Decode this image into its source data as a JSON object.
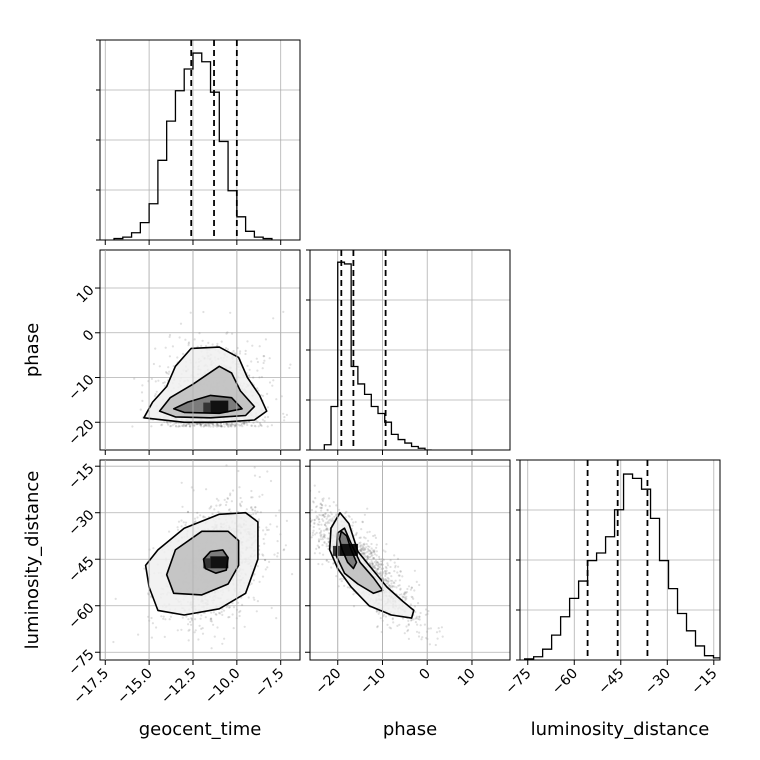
{
  "chart_data": {
    "type": "corner",
    "parameters": [
      "geocent_time",
      "phase",
      "luminosity_distance"
    ],
    "xlabels": {
      "geocent_time": "geocent_time",
      "phase": "phase",
      "luminosity_distance": "luminosity_distance"
    },
    "ylabels": {
      "phase": "phase",
      "luminosity_distance": "luminosity_distance"
    },
    "grid": true,
    "ranges": {
      "geocent_time": [
        -17.8,
        -6.4
      ],
      "phase": [
        -26.2,
        18.5
      ],
      "luminosity_distance": [
        -77.5,
        -13
      ]
    },
    "ticks": {
      "geocent_time": {
        "values": [
          -17.5,
          -15.0,
          -12.5,
          -10.0,
          -7.5
        ],
        "labels": [
          "−17.5",
          "−15.0",
          "−12.5",
          "−10.0",
          "−7.5"
        ]
      },
      "phase_x": {
        "values": [
          -20,
          -10,
          0,
          10
        ],
        "labels": [
          "−20",
          "−10",
          "0",
          "10"
        ]
      },
      "phase_y": {
        "values": [
          -20,
          -10,
          0,
          10
        ],
        "labels": [
          "−20",
          "−10",
          "0",
          "10"
        ]
      },
      "luminosity_distance": {
        "values": [
          -75,
          -60,
          -45,
          -30,
          -15
        ],
        "labels": [
          "−75",
          "−60",
          "−45",
          "−30",
          "−15"
        ]
      }
    },
    "histograms": {
      "geocent_time": {
        "bin_start": -17.0,
        "bin_width": 0.5,
        "counts": [
          1,
          2,
          5,
          12,
          25,
          55,
          82,
          103,
          118,
          129,
          123,
          102,
          68,
          34,
          16,
          6,
          2,
          1
        ],
        "ymax": 138,
        "quantiles": [
          -12.6,
          -11.3,
          -10.0
        ]
      },
      "phase": {
        "bin_start": -23.0,
        "bin_width": 1.5,
        "counts": [
          3,
          25,
          108,
          107,
          48,
          38,
          32,
          25,
          21,
          16,
          9,
          6,
          4,
          2,
          1,
          0
        ],
        "ymax": 115,
        "quantiles": [
          -19.2,
          -16.5,
          -9.3
        ]
      },
      "luminosity_distance": {
        "bin_start": -76.0,
        "bin_width": 2.9,
        "counts": [
          1,
          3,
          10,
          23,
          40,
          57,
          73,
          92,
          99,
          114,
          139,
          172,
          168,
          158,
          131,
          92,
          66,
          43,
          27,
          13,
          4,
          2
        ],
        "ymax": 185,
        "quantiles": [
          -55.7,
          -46.0,
          -36.4
        ]
      }
    },
    "scatter_2d": {
      "phase_vs_geocent_time": {
        "x": "geocent_time",
        "y": "phase",
        "mean": [
          -11.4,
          -15.5
        ],
        "std": [
          1.4,
          6.2
        ],
        "corr": 0.1,
        "density_peak": [
          -11.0,
          -16.5
        ],
        "contours": [
          [
            [
              -12.6,
              -3.5
            ],
            [
              -11.0,
              -3.2
            ],
            [
              -9.9,
              -5.5
            ],
            [
              -9.4,
              -10.0
            ],
            [
              -8.7,
              -14.0
            ],
            [
              -8.3,
              -17.5
            ],
            [
              -9.0,
              -19.5
            ],
            [
              -11.0,
              -20.0
            ],
            [
              -13.0,
              -20.0
            ],
            [
              -15.3,
              -19.0
            ],
            [
              -14.8,
              -15.5
            ],
            [
              -14.0,
              -12.0
            ],
            [
              -13.5,
              -7.5
            ]
          ],
          [
            [
              -12.5,
              -11.5
            ],
            [
              -11.0,
              -7.5
            ],
            [
              -10.3,
              -9.0
            ],
            [
              -9.8,
              -13.0
            ],
            [
              -9.0,
              -16.5
            ],
            [
              -9.5,
              -18.5
            ],
            [
              -11.5,
              -19.0
            ],
            [
              -13.5,
              -18.8
            ],
            [
              -14.4,
              -17.5
            ],
            [
              -13.8,
              -14.5
            ]
          ],
          [
            [
              -12.8,
              -15.5
            ],
            [
              -11.5,
              -14.0
            ],
            [
              -10.3,
              -14.5
            ],
            [
              -9.7,
              -17.0
            ],
            [
              -11.0,
              -18.0
            ],
            [
              -13.0,
              -17.8
            ],
            [
              -13.6,
              -17.0
            ]
          ]
        ]
      },
      "luminosity_distance_vs_geocent_time": {
        "x": "geocent_time",
        "y": "luminosity_distance",
        "mean": [
          -11.3,
          -46.0
        ],
        "std": [
          1.4,
          9.5
        ],
        "corr": 0.35,
        "density_peak": [
          -11.0,
          -46.0
        ],
        "contours": [
          [
            [
              -14.5,
              -42.0
            ],
            [
              -13.0,
              -35.0
            ],
            [
              -11.0,
              -30.5
            ],
            [
              -9.5,
              -30.0
            ],
            [
              -8.8,
              -33.0
            ],
            [
              -8.8,
              -45.0
            ],
            [
              -9.5,
              -56.0
            ],
            [
              -11.0,
              -61.0
            ],
            [
              -13.0,
              -63.0
            ],
            [
              -14.5,
              -61.5
            ],
            [
              -15.0,
              -54.0
            ],
            [
              -15.2,
              -47.0
            ]
          ],
          [
            [
              -13.5,
              -42.0
            ],
            [
              -12.0,
              -36.0
            ],
            [
              -10.5,
              -36.0
            ],
            [
              -9.9,
              -39.0
            ],
            [
              -9.9,
              -47.0
            ],
            [
              -10.5,
              -53.0
            ],
            [
              -12.0,
              -56.5
            ],
            [
              -13.6,
              -56.0
            ],
            [
              -14.0,
              -50.0
            ]
          ],
          [
            [
              -11.5,
              -42.5
            ],
            [
              -10.8,
              -42.0
            ],
            [
              -10.5,
              -44.5
            ],
            [
              -10.6,
              -48.5
            ],
            [
              -11.2,
              -49.5
            ],
            [
              -11.8,
              -48.0
            ],
            [
              -11.9,
              -45.0
            ]
          ]
        ]
      },
      "luminosity_distance_vs_phase": {
        "x": "phase",
        "y": "luminosity_distance",
        "mean": [
          -14.5,
          -47.0
        ],
        "std": [
          6.0,
          9.5
        ],
        "corr": -0.85,
        "density_peak": [
          -17.5,
          -42.0
        ],
        "contours": [
          [
            [
              -21.5,
              -35.0
            ],
            [
              -19.5,
              -30.0
            ],
            [
              -17.5,
              -33.5
            ],
            [
              -15.5,
              -42.5
            ],
            [
              -13.0,
              -47.0
            ],
            [
              -9.0,
              -54.0
            ],
            [
              -5.5,
              -58.5
            ],
            [
              -3.0,
              -61.5
            ],
            [
              -3.5,
              -64.0
            ],
            [
              -8.0,
              -63.0
            ],
            [
              -13.0,
              -60.0
            ],
            [
              -17.0,
              -54.0
            ],
            [
              -20.0,
              -48.0
            ],
            [
              -21.8,
              -42.0
            ]
          ],
          [
            [
              -20.0,
              -36.5
            ],
            [
              -18.5,
              -35.0
            ],
            [
              -17.0,
              -40.0
            ],
            [
              -15.0,
              -46.0
            ],
            [
              -12.0,
              -51.0
            ],
            [
              -10.0,
              -55.0
            ],
            [
              -12.0,
              -56.0
            ],
            [
              -15.5,
              -53.0
            ],
            [
              -18.5,
              -49.5
            ],
            [
              -20.3,
              -44.0
            ]
          ],
          [
            [
              -19.2,
              -36.0
            ],
            [
              -18.0,
              -37.5
            ],
            [
              -17.0,
              -42.0
            ],
            [
              -15.8,
              -46.0
            ],
            [
              -16.5,
              -48.0
            ],
            [
              -17.8,
              -46.0
            ],
            [
              -19.0,
              -42.0
            ],
            [
              -19.6,
              -38.5
            ]
          ]
        ]
      }
    }
  }
}
